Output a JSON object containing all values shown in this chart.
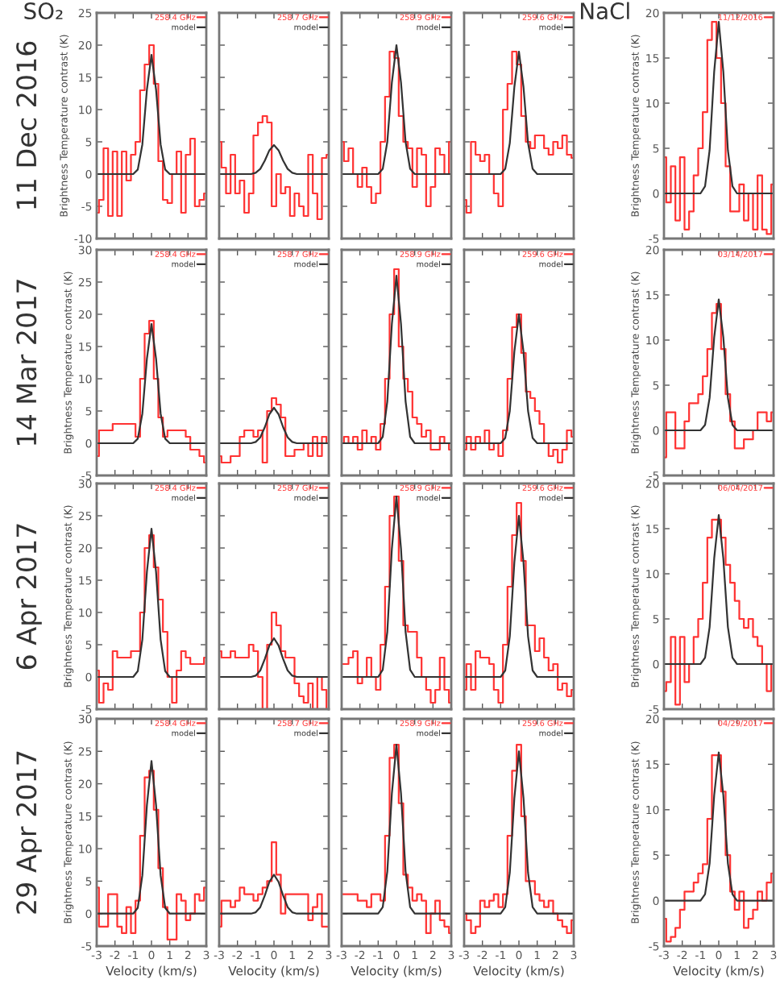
{
  "chart_data": [
    {
      "type": "step",
      "title": "SO₂",
      "annotations": [
        "11 Dec 2016"
      ],
      "ylabel": "Brightness Temperature contrast (K)",
      "legend": "top right",
      "tick_labels": "y",
      "xlim": [
        -3,
        3
      ],
      "xticks": [
        -3,
        -2,
        -1,
        0,
        1,
        2,
        3
      ],
      "ylim": [
        -10,
        25
      ],
      "yticks": [
        -10,
        -5,
        0,
        5,
        10,
        15,
        20,
        25
      ],
      "x": [
        -3,
        -2.75,
        -2.5,
        -2.25,
        -2,
        -1.75,
        -1.5,
        -1.25,
        -1,
        -0.75,
        -0.5,
        -0.25,
        0,
        0.25,
        0.5,
        0.75,
        1,
        1.25,
        1.5,
        1.75,
        2,
        2.25,
        2.5,
        2.75,
        3
      ],
      "series": [
        {
          "name": "258.4 GHz",
          "color": "#ff3333",
          "values": [
            -6,
            -4,
            4,
            -6.5,
            3.5,
            -6.5,
            3.5,
            -1,
            3,
            5,
            13,
            17,
            20,
            14,
            2,
            -4,
            -4.5,
            0,
            3.5,
            -6,
            3,
            5.5,
            -5,
            -4,
            -3
          ]
        },
        {
          "name": "model",
          "type": "line",
          "color": "#333333",
          "x": [
            -3,
            -1.25,
            -1,
            -0.75,
            -0.5,
            -0.25,
            0,
            0.25,
            0.5,
            0.75,
            1,
            1.25,
            3
          ],
          "values": [
            0,
            0,
            0,
            0.7,
            4.6,
            13.1,
            18.5,
            13.1,
            4.6,
            0.7,
            0,
            0,
            0
          ]
        }
      ]
    },
    {
      "type": "step",
      "legend": "top right",
      "tick_labels": false,
      "xlim": [
        -3,
        3
      ],
      "xticks": [
        -3,
        -2,
        -1,
        0,
        1,
        2,
        3
      ],
      "ylim": [
        -10,
        25
      ],
      "yticks": [
        -10,
        -5,
        0,
        5,
        10,
        15,
        20,
        25
      ],
      "x": [
        -3,
        -2.75,
        -2.5,
        -2.25,
        -2,
        -1.75,
        -1.5,
        -1.25,
        -1,
        -0.75,
        -0.5,
        -0.25,
        0,
        0.25,
        0.5,
        0.75,
        1,
        1.25,
        1.5,
        1.75,
        2,
        2.25,
        2.5,
        2.75,
        3
      ],
      "series": [
        {
          "name": "258.7 GHz",
          "color": "#ff3333",
          "values": [
            5,
            1,
            -3,
            3,
            -3,
            -1,
            -6,
            -3,
            6,
            8,
            9,
            8,
            -5,
            0,
            -3,
            -2,
            -6.5,
            -3,
            -5,
            -6.5,
            3,
            -3,
            -7,
            2.5,
            3
          ]
        },
        {
          "name": "model",
          "type": "line",
          "color": "#333333",
          "x": [
            -3,
            -1.25,
            -1,
            -0.75,
            -0.5,
            -0.25,
            0,
            0.25,
            0.5,
            0.75,
            1,
            1.25,
            3
          ],
          "values": [
            0,
            0,
            0.2,
            0.8,
            2.1,
            3.7,
            4.5,
            3.7,
            2.1,
            0.8,
            0.2,
            0,
            0
          ]
        }
      ]
    },
    {
      "type": "step",
      "legend": "top right",
      "tick_labels": false,
      "xlim": [
        -3,
        3
      ],
      "xticks": [
        -3,
        -2,
        -1,
        0,
        1,
        2,
        3
      ],
      "ylim": [
        -10,
        25
      ],
      "yticks": [
        -10,
        -5,
        0,
        5,
        10,
        15,
        20,
        25
      ],
      "x": [
        -3,
        -2.75,
        -2.5,
        -2.25,
        -2,
        -1.75,
        -1.5,
        -1.25,
        -1,
        -0.75,
        -0.5,
        -0.25,
        0,
        0.25,
        0.5,
        0.75,
        1,
        1.25,
        1.5,
        1.75,
        2,
        2.25,
        2.5,
        2.75,
        3
      ],
      "series": [
        {
          "name": "258.9 GHz",
          "color": "#ff3333",
          "values": [
            5,
            2,
            4,
            0,
            -2,
            1,
            -2,
            -4.5,
            -3,
            5,
            12,
            19,
            18,
            9,
            5,
            4,
            -2,
            4,
            3,
            -5,
            -2,
            4,
            3,
            0,
            5
          ]
        },
        {
          "name": "model",
          "type": "line",
          "color": "#333333",
          "x": [
            -3,
            -1.25,
            -1,
            -0.75,
            -0.5,
            -0.25,
            0,
            0.25,
            0.5,
            0.75,
            1,
            1.25,
            3
          ],
          "values": [
            0,
            0,
            0,
            0.8,
            5,
            14.2,
            20,
            14.2,
            5,
            0.8,
            0,
            0,
            0
          ]
        }
      ]
    },
    {
      "type": "step",
      "legend": "top right",
      "tick_labels": false,
      "xlim": [
        -3,
        3
      ],
      "xticks": [
        -3,
        -2,
        -1,
        0,
        1,
        2,
        3
      ],
      "ylim": [
        -10,
        25
      ],
      "yticks": [
        -10,
        -5,
        0,
        5,
        10,
        15,
        20,
        25
      ],
      "x": [
        -3,
        -2.75,
        -2.5,
        -2.25,
        -2,
        -1.75,
        -1.5,
        -1.25,
        -1,
        -0.75,
        -0.5,
        -0.25,
        0,
        0.25,
        0.5,
        0.75,
        1,
        1.25,
        1.5,
        1.75,
        2,
        2.25,
        2.5,
        2.75,
        3
      ],
      "series": [
        {
          "name": "259.6 GHz",
          "color": "#ff3333",
          "values": [
            -4,
            -6,
            5,
            3,
            2,
            3,
            0,
            -3,
            -5,
            10,
            14,
            19,
            17,
            9,
            5,
            4,
            6,
            6,
            4,
            3,
            5,
            4,
            6,
            3,
            2.5
          ]
        },
        {
          "name": "model",
          "type": "line",
          "color": "#333333",
          "x": [
            -3,
            -1.25,
            -1,
            -0.75,
            -0.5,
            -0.25,
            0,
            0.25,
            0.5,
            0.75,
            1,
            1.25,
            3
          ],
          "values": [
            0,
            0,
            0,
            0.8,
            4.8,
            13.5,
            19,
            13.5,
            4.8,
            0.8,
            0,
            0,
            0
          ]
        }
      ]
    },
    {
      "type": "step",
      "title": "NaCl",
      "ylabel": "Brightness Temperature contrast (K)",
      "legend": "top right",
      "tick_labels": "y",
      "xlim": [
        -3,
        3
      ],
      "xticks": [
        -3,
        -2,
        -1,
        0,
        1,
        2,
        3
      ],
      "ylim": [
        -5,
        20
      ],
      "yticks": [
        -5,
        0,
        5,
        10,
        15,
        20
      ],
      "x": [
        -3,
        -2.75,
        -2.5,
        -2.25,
        -2,
        -1.75,
        -1.5,
        -1.25,
        -1,
        -0.75,
        -0.5,
        -0.25,
        0,
        0.25,
        0.5,
        0.75,
        1,
        1.25,
        1.5,
        1.75,
        2,
        2.25,
        2.5,
        2.75,
        3
      ],
      "series": [
        {
          "name": "11/12/2016",
          "color": "#ff3333",
          "values": [
            4,
            -1,
            3,
            -3,
            4,
            -4,
            -2,
            2,
            5,
            9,
            17,
            19,
            15,
            10,
            3,
            -2,
            -2,
            1,
            -3,
            0,
            -4,
            2,
            -4,
            -4.5,
            1
          ]
        },
        {
          "type": "line",
          "color": "#333333",
          "x": [
            -3,
            -1.25,
            -1,
            -0.75,
            -0.5,
            -0.25,
            0,
            0.25,
            0.5,
            0.75,
            1,
            1.25,
            3
          ],
          "values": [
            0,
            0,
            0,
            0.8,
            4.8,
            13.5,
            19,
            13.5,
            4.8,
            0.8,
            0,
            0,
            0
          ]
        }
      ]
    },
    {
      "type": "step",
      "annotations": [
        "14 Mar 2017"
      ],
      "ylabel": "Brightness Temperature contrast (K)",
      "legend": "top right",
      "tick_labels": "y",
      "xlim": [
        -3,
        3
      ],
      "xticks": [
        -3,
        -2,
        -1,
        0,
        1,
        2,
        3
      ],
      "ylim": [
        -5,
        30
      ],
      "yticks": [
        -5,
        0,
        5,
        10,
        15,
        20,
        25,
        30
      ],
      "x": [
        -3,
        -2.75,
        -2.5,
        -2.25,
        -2,
        -1.75,
        -1.5,
        -1.25,
        -1,
        -0.75,
        -0.5,
        -0.25,
        0,
        0.25,
        0.5,
        0.75,
        1,
        1.25,
        1.5,
        1.75,
        2,
        2.25,
        2.5,
        2.75,
        3
      ],
      "series": [
        {
          "name": "258.4 GHz",
          "color": "#ff3333",
          "values": [
            -2,
            2,
            2,
            2,
            3,
            3,
            3,
            3,
            3,
            1,
            10,
            17,
            19,
            10,
            4,
            1,
            2,
            2,
            2,
            2,
            1,
            -1,
            -1,
            -2,
            -3
          ]
        },
        {
          "name": "model",
          "type": "line",
          "color": "#333333",
          "x": [
            -3,
            -1.25,
            -1,
            -0.75,
            -0.5,
            -0.25,
            0,
            0.25,
            0.5,
            0.75,
            1,
            1.25,
            3
          ],
          "values": [
            0,
            0,
            0,
            0.7,
            4.6,
            13.1,
            18.5,
            13.1,
            4.6,
            0.7,
            0,
            0,
            0
          ]
        }
      ]
    },
    {
      "type": "step",
      "legend": "top right",
      "tick_labels": false,
      "xlim": [
        -3,
        3
      ],
      "xticks": [
        -3,
        -2,
        -1,
        0,
        1,
        2,
        3
      ],
      "ylim": [
        -5,
        30
      ],
      "yticks": [
        -5,
        0,
        5,
        10,
        15,
        20,
        25,
        30
      ],
      "x": [
        -3,
        -2.75,
        -2.5,
        -2.25,
        -2,
        -1.75,
        -1.5,
        -1.25,
        -1,
        -0.75,
        -0.5,
        -0.25,
        0,
        0.25,
        0.5,
        0.75,
        1,
        1.25,
        1.5,
        1.75,
        2,
        2.25,
        2.5,
        2.75,
        3
      ],
      "series": [
        {
          "name": "258.7 GHz",
          "color": "#ff3333",
          "values": [
            -2,
            -3,
            -3,
            -2,
            -2,
            1,
            2,
            2,
            1,
            2,
            -3,
            5,
            7,
            6,
            4,
            -2,
            -2,
            -1,
            -1,
            0,
            -2,
            1,
            -2,
            1,
            0
          ]
        },
        {
          "name": "model",
          "type": "line",
          "color": "#333333",
          "x": [
            -3,
            -1.25,
            -1,
            -0.75,
            -0.5,
            -0.25,
            0,
            0.25,
            0.5,
            0.75,
            1,
            1.25,
            3
          ],
          "values": [
            0,
            0,
            0.2,
            0.9,
            2.5,
            4.5,
            5.5,
            4.5,
            2.5,
            0.9,
            0.2,
            0,
            0
          ]
        }
      ]
    },
    {
      "type": "step",
      "legend": "top right",
      "tick_labels": false,
      "xlim": [
        -3,
        3
      ],
      "xticks": [
        -3,
        -2,
        -1,
        0,
        1,
        2,
        3
      ],
      "ylim": [
        -5,
        30
      ],
      "yticks": [
        -5,
        0,
        5,
        10,
        15,
        20,
        25,
        30
      ],
      "x": [
        -3,
        -2.75,
        -2.5,
        -2.25,
        -2,
        -1.75,
        -1.5,
        -1.25,
        -1,
        -0.75,
        -0.5,
        -0.25,
        0,
        0.25,
        0.5,
        0.75,
        1,
        1.25,
        1.5,
        1.75,
        2,
        2.25,
        2.5,
        2.75,
        3
      ],
      "series": [
        {
          "name": "258.9 GHz",
          "color": "#ff3333",
          "values": [
            0,
            1,
            0,
            1,
            -1,
            2,
            0,
            1,
            -1,
            3,
            10,
            20,
            27,
            15,
            10,
            8,
            4,
            3,
            1,
            2,
            -1,
            -1,
            1,
            0,
            -1
          ]
        },
        {
          "name": "model",
          "type": "line",
          "color": "#333333",
          "x": [
            -3,
            -1.25,
            -1,
            -0.75,
            -0.5,
            -0.25,
            0,
            0.25,
            0.5,
            0.75,
            1,
            1.25,
            3
          ],
          "values": [
            0,
            0,
            0,
            1,
            6.5,
            18.5,
            26,
            18.5,
            6.5,
            1,
            0,
            0,
            0
          ]
        }
      ]
    },
    {
      "type": "step",
      "legend": "top right",
      "tick_labels": false,
      "xlim": [
        -3,
        3
      ],
      "xticks": [
        -3,
        -2,
        -1,
        0,
        1,
        2,
        3
      ],
      "ylim": [
        -5,
        30
      ],
      "yticks": [
        -5,
        0,
        5,
        10,
        15,
        20,
        25,
        30
      ],
      "x": [
        -3,
        -2.75,
        -2.5,
        -2.25,
        -2,
        -1.75,
        -1.5,
        -1.25,
        -1,
        -0.75,
        -0.5,
        -0.25,
        0,
        0.25,
        0.5,
        0.75,
        1,
        1.25,
        1.5,
        1.75,
        2,
        2.25,
        2.5,
        2.75,
        3
      ],
      "series": [
        {
          "name": "259.6 GHz",
          "color": "#ff3333",
          "values": [
            -1,
            1,
            -1,
            1,
            0,
            2,
            -1,
            0,
            -2,
            2,
            10,
            18,
            20,
            14,
            8,
            7,
            5,
            3,
            0,
            -2,
            -1,
            -3,
            -1,
            2,
            1
          ]
        },
        {
          "name": "model",
          "type": "line",
          "color": "#333333",
          "x": [
            -3,
            -1.25,
            -1,
            -0.75,
            -0.5,
            -0.25,
            0,
            0.25,
            0.5,
            0.75,
            1,
            1.25,
            3
          ],
          "values": [
            0,
            0,
            0,
            0.8,
            5,
            14.2,
            20,
            14.2,
            5,
            0.8,
            0,
            0,
            0
          ]
        }
      ]
    },
    {
      "type": "step",
      "ylabel": "Brightness Temperature contrast (K)",
      "legend": "top right",
      "tick_labels": "y",
      "xlim": [
        -3,
        3
      ],
      "xticks": [
        -3,
        -2,
        -1,
        0,
        1,
        2,
        3
      ],
      "ylim": [
        -5,
        20
      ],
      "yticks": [
        -5,
        0,
        5,
        10,
        15,
        20
      ],
      "x": [
        -3,
        -2.75,
        -2.5,
        -2.25,
        -2,
        -1.75,
        -1.5,
        -1.25,
        -1,
        -0.75,
        -0.5,
        -0.25,
        0,
        0.25,
        0.5,
        0.75,
        1,
        1.25,
        1.5,
        1.75,
        2,
        2.25,
        2.5,
        2.75,
        3
      ],
      "series": [
        {
          "name": "03/14/2017",
          "color": "#ff3333",
          "values": [
            -3,
            2,
            2,
            -2,
            -2,
            1,
            3,
            3,
            4,
            6,
            9,
            13,
            14,
            9,
            4,
            1,
            -2,
            -2,
            -1,
            -1,
            0,
            2,
            2,
            1,
            2
          ]
        },
        {
          "type": "line",
          "color": "#333333",
          "x": [
            -3,
            -1.25,
            -1,
            -0.75,
            -0.5,
            -0.25,
            0,
            0.25,
            0.5,
            0.75,
            1,
            1.25,
            3
          ],
          "values": [
            0,
            0,
            0,
            0.6,
            3.6,
            10.3,
            14.5,
            10.3,
            3.6,
            0.6,
            0,
            0,
            0
          ]
        }
      ]
    },
    {
      "type": "step",
      "annotations": [
        "6 Apr 2017"
      ],
      "ylabel": "Brightness Temperature contrast (K)",
      "legend": "top right",
      "tick_labels": "y",
      "xlim": [
        -3,
        3
      ],
      "xticks": [
        -3,
        -2,
        -1,
        0,
        1,
        2,
        3
      ],
      "ylim": [
        -5,
        30
      ],
      "yticks": [
        -5,
        0,
        5,
        10,
        15,
        20,
        25,
        30
      ],
      "x": [
        -3,
        -2.75,
        -2.5,
        -2.25,
        -2,
        -1.75,
        -1.5,
        -1.25,
        -1,
        -0.75,
        -0.5,
        -0.25,
        0,
        0.25,
        0.5,
        0.75,
        1,
        1.25,
        1.5,
        1.75,
        2,
        2.25,
        2.5,
        2.75,
        3
      ],
      "series": [
        {
          "name": "258.4 GHz",
          "color": "#ff3333",
          "values": [
            1,
            -4,
            -1,
            -2,
            4,
            3,
            3,
            3,
            4,
            4,
            10,
            20,
            22,
            17,
            12,
            7,
            0,
            -4,
            1,
            4,
            3,
            2,
            2,
            2,
            3
          ]
        },
        {
          "name": "model",
          "type": "line",
          "color": "#333333",
          "x": [
            -3,
            -1.25,
            -1,
            -0.75,
            -0.5,
            -0.25,
            0,
            0.25,
            0.5,
            0.75,
            1,
            1.25,
            3
          ],
          "values": [
            0,
            0,
            0,
            0.9,
            5.8,
            16.3,
            23,
            16.3,
            5.8,
            0.9,
            0,
            0,
            0
          ]
        }
      ]
    },
    {
      "type": "step",
      "legend": "top right",
      "tick_labels": false,
      "xlim": [
        -3,
        3
      ],
      "xticks": [
        -3,
        -2,
        -1,
        0,
        1,
        2,
        3
      ],
      "ylim": [
        -5,
        30
      ],
      "yticks": [
        -5,
        0,
        5,
        10,
        15,
        20,
        25,
        30
      ],
      "x": [
        -3,
        -2.75,
        -2.5,
        -2.25,
        -2,
        -1.75,
        -1.5,
        -1.25,
        -1,
        -0.75,
        -0.5,
        -0.25,
        0,
        0.25,
        0.5,
        0.75,
        1,
        1.25,
        1.5,
        1.75,
        2,
        2.25,
        2.5,
        2.75,
        3
      ],
      "series": [
        {
          "name": "258.7 GHz",
          "color": "#ff3333",
          "values": [
            4,
            3,
            3,
            4,
            3,
            3,
            3,
            5,
            4,
            0,
            -5,
            5,
            10,
            8,
            4,
            3,
            3,
            -1,
            -3,
            -4,
            -1,
            -5,
            0,
            -2,
            -5
          ]
        },
        {
          "name": "model",
          "type": "line",
          "color": "#333333",
          "x": [
            -3,
            -1.25,
            -1,
            -0.75,
            -0.5,
            -0.25,
            0,
            0.25,
            0.5,
            0.75,
            1,
            1.25,
            3
          ],
          "values": [
            0,
            0,
            0.2,
            1,
            2.8,
            4.9,
            6,
            4.9,
            2.8,
            1,
            0.2,
            0,
            0
          ]
        }
      ]
    },
    {
      "type": "step",
      "legend": "top right",
      "tick_labels": false,
      "xlim": [
        -3,
        3
      ],
      "xticks": [
        -3,
        -2,
        -1,
        0,
        1,
        2,
        3
      ],
      "ylim": [
        -5,
        30
      ],
      "yticks": [
        -5,
        0,
        5,
        10,
        15,
        20,
        25,
        30
      ],
      "x": [
        -3,
        -2.75,
        -2.5,
        -2.25,
        -2,
        -1.75,
        -1.5,
        -1.25,
        -1,
        -0.75,
        -0.5,
        -0.25,
        0,
        0.25,
        0.5,
        0.75,
        1,
        1.25,
        1.5,
        1.75,
        2,
        2.25,
        2.5,
        2.75,
        3
      ],
      "series": [
        {
          "name": "258.9 GHz",
          "color": "#ff3333",
          "values": [
            2,
            2,
            3,
            4,
            -1,
            0,
            3,
            0,
            -2,
            5,
            14,
            25,
            28,
            18,
            8,
            7,
            7,
            3,
            0,
            -2,
            -4,
            -2,
            3,
            -2,
            -4
          ]
        },
        {
          "name": "model",
          "type": "line",
          "color": "#333333",
          "x": [
            -3,
            -1.25,
            -1,
            -0.75,
            -0.5,
            -0.25,
            0,
            0.25,
            0.5,
            0.75,
            1,
            1.25,
            3
          ],
          "values": [
            0,
            0,
            0,
            1.1,
            7,
            19.9,
            28,
            19.9,
            7,
            1.1,
            0,
            0,
            0
          ]
        }
      ]
    },
    {
      "type": "step",
      "legend": "top right",
      "tick_labels": false,
      "xlim": [
        -3,
        3
      ],
      "xticks": [
        -3,
        -2,
        -1,
        0,
        1,
        2,
        3
      ],
      "ylim": [
        -5,
        30
      ],
      "yticks": [
        -5,
        0,
        5,
        10,
        15,
        20,
        25,
        30
      ],
      "x": [
        -3,
        -2.75,
        -2.5,
        -2.25,
        -2,
        -1.75,
        -1.5,
        -1.25,
        -1,
        -0.75,
        -0.5,
        -0.25,
        0,
        0.25,
        0.5,
        0.75,
        1,
        1.25,
        1.5,
        1.75,
        2,
        2.25,
        2.5,
        2.75,
        3
      ],
      "series": [
        {
          "name": "259.6 GHz",
          "color": "#ff3333",
          "values": [
            -2,
            2,
            -2,
            4,
            3,
            3,
            2,
            -2,
            -4,
            5,
            14,
            22,
            27,
            18,
            8,
            8,
            4,
            6,
            3,
            1,
            2,
            -2,
            -1,
            -3,
            -2
          ]
        },
        {
          "name": "model",
          "type": "line",
          "color": "#333333",
          "x": [
            -3,
            -1.25,
            -1,
            -0.75,
            -0.5,
            -0.25,
            0,
            0.25,
            0.5,
            0.75,
            1,
            1.25,
            3
          ],
          "values": [
            0,
            0,
            0,
            1,
            6.3,
            17.8,
            25,
            17.8,
            6.3,
            1,
            0,
            0,
            0
          ]
        }
      ]
    },
    {
      "type": "step",
      "ylabel": "Brightness Temperature contrast (K)",
      "legend": "top right",
      "tick_labels": "y",
      "xlim": [
        -3,
        3
      ],
      "xticks": [
        -3,
        -2,
        -1,
        0,
        1,
        2,
        3
      ],
      "ylim": [
        -5,
        20
      ],
      "yticks": [
        -5,
        0,
        5,
        10,
        15,
        20
      ],
      "x": [
        -3,
        -2.75,
        -2.5,
        -2.25,
        -2,
        -1.75,
        -1.5,
        -1.25,
        -1,
        -0.75,
        -0.5,
        -0.25,
        0,
        0.25,
        0.5,
        0.75,
        1,
        1.25,
        1.5,
        1.75,
        2,
        2.25,
        2.5,
        2.75,
        3
      ],
      "series": [
        {
          "name": "06/04/2017",
          "color": "#ff3333",
          "values": [
            -3,
            -2,
            3,
            -4.5,
            3,
            -2,
            0,
            3,
            5,
            9,
            14,
            16,
            16,
            14,
            11,
            9,
            7,
            5,
            4,
            5,
            3,
            2,
            0,
            -3,
            0
          ]
        },
        {
          "type": "line",
          "color": "#333333",
          "x": [
            -3,
            -1.25,
            -1,
            -0.75,
            -0.5,
            -0.25,
            0,
            0.25,
            0.5,
            0.75,
            1,
            1.25,
            3
          ],
          "values": [
            0,
            0,
            0,
            0.7,
            4.1,
            11.7,
            16.5,
            11.7,
            4.1,
            0.7,
            0,
            0,
            0
          ]
        }
      ]
    },
    {
      "type": "step",
      "annotations": [
        "29 Apr 2017"
      ],
      "xlabel": "Velocity (km/s)",
      "ylabel": "Brightness Temperature contrast (K)",
      "legend": "top right",
      "xlim": [
        -3,
        3
      ],
      "xticks": [
        -3,
        -2,
        -1,
        0,
        1,
        2,
        3
      ],
      "ylim": [
        -5,
        30
      ],
      "yticks": [
        -5,
        0,
        5,
        10,
        15,
        20,
        25,
        30
      ],
      "x": [
        -3,
        -2.75,
        -2.5,
        -2.25,
        -2,
        -1.75,
        -1.5,
        -1.25,
        -1,
        -0.75,
        -0.5,
        -0.25,
        0,
        0.25,
        0.5,
        0.75,
        1,
        1.25,
        1.5,
        1.75,
        2,
        2.25,
        2.5,
        2.75,
        3
      ],
      "series": [
        {
          "name": "258.4 GHz",
          "color": "#ff3333",
          "values": [
            4,
            -2,
            -2,
            3,
            3,
            -2,
            -3,
            1,
            -3,
            2,
            12,
            21,
            22,
            16,
            7,
            1,
            -4,
            -4,
            3,
            2,
            -1,
            0,
            3,
            2,
            4
          ]
        },
        {
          "name": "model",
          "type": "line",
          "color": "#333333",
          "x": [
            -3,
            -1.25,
            -1,
            -0.75,
            -0.5,
            -0.25,
            0,
            0.25,
            0.5,
            0.75,
            1,
            1.25,
            3
          ],
          "values": [
            0,
            0,
            0,
            0.9,
            5.9,
            16.7,
            23.5,
            16.7,
            5.9,
            0.9,
            0,
            0,
            0
          ]
        }
      ]
    },
    {
      "type": "step",
      "xlabel": "Velocity (km/s)",
      "legend": "top right",
      "tick_labels": "x",
      "xlim": [
        -3,
        3
      ],
      "xticks": [
        -3,
        -2,
        -1,
        0,
        1,
        2,
        3
      ],
      "ylim": [
        -5,
        30
      ],
      "yticks": [
        -5,
        0,
        5,
        10,
        15,
        20,
        25,
        30
      ],
      "x": [
        -3,
        -2.75,
        -2.5,
        -2.25,
        -2,
        -1.75,
        -1.5,
        -1.25,
        -1,
        -0.75,
        -0.5,
        -0.25,
        0,
        0.25,
        0.5,
        0.75,
        1,
        1.25,
        1.5,
        1.75,
        2,
        2.25,
        2.5,
        2.75,
        3
      ],
      "series": [
        {
          "name": "258.7 GHz",
          "color": "#ff3333",
          "values": [
            -2,
            2,
            2,
            1,
            2,
            4,
            3,
            3,
            2,
            3,
            4,
            5,
            11,
            6,
            0,
            3,
            3,
            3,
            3,
            3,
            -1,
            1,
            3,
            -2,
            -2
          ]
        },
        {
          "name": "model",
          "type": "line",
          "color": "#333333",
          "x": [
            -3,
            -1.25,
            -1,
            -0.75,
            -0.5,
            -0.25,
            0,
            0.25,
            0.5,
            0.75,
            1,
            1.25,
            3
          ],
          "values": [
            0,
            0,
            0.2,
            1,
            2.8,
            4.9,
            6,
            4.9,
            2.8,
            1,
            0.2,
            0,
            0
          ]
        }
      ]
    },
    {
      "type": "step",
      "xlabel": "Velocity (km/s)",
      "legend": "top right",
      "tick_labels": "x",
      "xlim": [
        -3,
        3
      ],
      "xticks": [
        -3,
        -2,
        -1,
        0,
        1,
        2,
        3
      ],
      "ylim": [
        -5,
        30
      ],
      "yticks": [
        -5,
        0,
        5,
        10,
        15,
        20,
        25,
        30
      ],
      "x": [
        -3,
        -2.75,
        -2.5,
        -2.25,
        -2,
        -1.75,
        -1.5,
        -1.25,
        -1,
        -0.75,
        -0.5,
        -0.25,
        0,
        0.25,
        0.5,
        0.75,
        1,
        1.25,
        1.5,
        1.75,
        2,
        2.25,
        2.5,
        2.75,
        3
      ],
      "series": [
        {
          "name": "258.9 GHz",
          "color": "#ff3333",
          "values": [
            3,
            3,
            3,
            3,
            2,
            2,
            1,
            3,
            3,
            2,
            12,
            24,
            26,
            17,
            6,
            4,
            2,
            3,
            2,
            -3,
            0,
            2,
            -1,
            -2,
            -3
          ]
        },
        {
          "name": "model",
          "type": "line",
          "color": "#333333",
          "x": [
            -3,
            -1.25,
            -1,
            -0.75,
            -0.5,
            -0.25,
            0,
            0.25,
            0.5,
            0.75,
            1,
            1.25,
            3
          ],
          "values": [
            0,
            0,
            0,
            1,
            6.5,
            18.5,
            26,
            18.5,
            6.5,
            1,
            0,
            0,
            0
          ]
        }
      ]
    },
    {
      "type": "step",
      "xlabel": "Velocity (km/s)",
      "legend": "top right",
      "tick_labels": "x",
      "xlim": [
        -3,
        3
      ],
      "xticks": [
        -3,
        -2,
        -1,
        0,
        1,
        2,
        3
      ],
      "ylim": [
        -5,
        30
      ],
      "yticks": [
        -5,
        0,
        5,
        10,
        15,
        20,
        25,
        30
      ],
      "x": [
        -3,
        -2.75,
        -2.5,
        -2.25,
        -2,
        -1.75,
        -1.5,
        -1.25,
        -1,
        -0.75,
        -0.5,
        -0.25,
        0,
        0.25,
        0.5,
        0.75,
        1,
        1.25,
        1.5,
        1.75,
        2,
        2.25,
        2.5,
        2.75,
        3
      ],
      "series": [
        {
          "name": "259.6 GHz",
          "color": "#ff3333",
          "values": [
            0,
            -1,
            -3,
            -2,
            2,
            1,
            2,
            3,
            1,
            3,
            12,
            22,
            26,
            15,
            5,
            5,
            3,
            2,
            1,
            2,
            0,
            -1,
            -2,
            -3,
            -1
          ]
        },
        {
          "name": "model",
          "type": "line",
          "color": "#333333",
          "x": [
            -3,
            -1.25,
            -1,
            -0.75,
            -0.5,
            -0.25,
            0,
            0.25,
            0.5,
            0.75,
            1,
            1.25,
            3
          ],
          "values": [
            0,
            0,
            0,
            1,
            6.3,
            17.8,
            25,
            17.8,
            6.3,
            1,
            0,
            0,
            0
          ]
        }
      ]
    },
    {
      "type": "step",
      "xlabel": "Velocity (km/s)",
      "ylabel": "Brightness Temperature contrast (K)",
      "legend": "top right",
      "xlim": [
        -3,
        3
      ],
      "xticks": [
        -3,
        -2,
        -1,
        0,
        1,
        2,
        3
      ],
      "ylim": [
        -5,
        20
      ],
      "yticks": [
        -5,
        0,
        5,
        10,
        15,
        20
      ],
      "x": [
        -3,
        -2.75,
        -2.5,
        -2.25,
        -2,
        -1.75,
        -1.5,
        -1.25,
        -1,
        -0.75,
        -0.5,
        -0.25,
        0,
        0.25,
        0.5,
        0.75,
        1,
        1.25,
        1.5,
        1.75,
        2,
        2.25,
        2.5,
        2.75,
        3
      ],
      "series": [
        {
          "name": "04/29/2017",
          "color": "#ff3333",
          "values": [
            -2,
            -4.5,
            -4,
            -3,
            -1,
            1,
            1,
            2,
            3,
            4,
            9,
            16,
            16,
            12,
            5,
            1,
            -1,
            1,
            -3,
            -2,
            -1,
            1,
            0,
            2,
            3
          ]
        },
        {
          "type": "line",
          "color": "#333333",
          "x": [
            -3,
            -1.25,
            -1,
            -0.75,
            -0.5,
            -0.25,
            0,
            0.25,
            0.5,
            0.75,
            1,
            1.25,
            3
          ],
          "values": [
            0,
            0,
            0,
            0.7,
            4.1,
            11.6,
            16.3,
            11.6,
            4.1,
            0.7,
            0,
            0,
            0
          ]
        }
      ]
    }
  ]
}
